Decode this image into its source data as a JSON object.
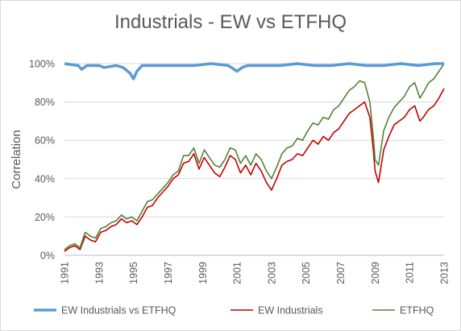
{
  "chart_data": {
    "type": "line",
    "title": "Industrials - EW vs ETFHQ",
    "xlabel": "",
    "ylabel": "Correlation",
    "xlim": [
      1991,
      2013
    ],
    "ylim": [
      0,
      100
    ],
    "x_ticks": [
      "1991",
      "1993",
      "1995",
      "1997",
      "1999",
      "2001",
      "2003",
      "2005",
      "2007",
      "2009",
      "2011",
      "2013"
    ],
    "y_ticks": [
      "0%",
      "20%",
      "40%",
      "60%",
      "80%",
      "100%"
    ],
    "grid": "horizontal",
    "legend_position": "bottom",
    "series": [
      {
        "name": "EW Industrials vs ETFHQ",
        "color": "#5b9bd5",
        "x": [
          1991.0,
          1991.8,
          1992.0,
          1992.3,
          1993.0,
          1993.3,
          1994.0,
          1994.4,
          1994.8,
          1995.0,
          1995.2,
          1995.5,
          1996.5,
          1997.5,
          1998.5,
          1999.5,
          2000.5,
          2001.0,
          2001.3,
          2001.6,
          2002.5,
          2003.5,
          2004.5,
          2005.5,
          2006.5,
          2007.5,
          2008.5,
          2009.5,
          2010.5,
          2011.5,
          2012.5,
          2013.0
        ],
        "y": [
          100,
          99,
          97,
          99,
          99,
          98,
          99,
          98,
          95,
          92,
          96,
          99,
          99,
          99,
          99,
          100,
          99,
          96,
          98,
          99,
          99,
          99,
          100,
          99,
          99,
          100,
          99,
          99,
          100,
          99,
          100,
          100
        ]
      },
      {
        "name": "EW Industrials",
        "color": "#c00000",
        "x": [
          1991.0,
          1991.3,
          1991.6,
          1991.9,
          1992.2,
          1992.5,
          1992.8,
          1993.1,
          1993.4,
          1993.7,
          1994.0,
          1994.3,
          1994.6,
          1994.9,
          1995.2,
          1995.5,
          1995.8,
          1996.1,
          1996.4,
          1996.7,
          1997.0,
          1997.3,
          1997.6,
          1997.9,
          1998.2,
          1998.5,
          1998.8,
          1999.1,
          1999.4,
          1999.7,
          2000.0,
          2000.3,
          2000.6,
          2000.9,
          2001.2,
          2001.5,
          2001.8,
          2002.1,
          2002.4,
          2002.7,
          2003.0,
          2003.3,
          2003.6,
          2003.9,
          2004.2,
          2004.5,
          2004.8,
          2005.1,
          2005.4,
          2005.7,
          2006.0,
          2006.3,
          2006.6,
          2006.9,
          2007.2,
          2007.5,
          2007.8,
          2008.1,
          2008.4,
          2008.7,
          2008.9,
          2009.0,
          2009.2,
          2009.5,
          2009.8,
          2010.1,
          2010.4,
          2010.7,
          2011.0,
          2011.3,
          2011.6,
          2011.8,
          2012.1,
          2012.4,
          2012.7,
          2013.0
        ],
        "y": [
          2,
          4,
          5,
          3,
          10,
          8,
          7,
          12,
          13,
          15,
          16,
          19,
          17,
          18,
          16,
          20,
          25,
          26,
          30,
          33,
          36,
          40,
          42,
          48,
          49,
          53,
          45,
          51,
          47,
          43,
          41,
          46,
          52,
          50,
          43,
          47,
          42,
          48,
          44,
          38,
          34,
          40,
          47,
          49,
          50,
          53,
          52,
          56,
          60,
          58,
          62,
          60,
          64,
          66,
          70,
          74,
          76,
          78,
          80,
          72,
          55,
          44,
          38,
          55,
          62,
          68,
          70,
          72,
          76,
          78,
          70,
          72,
          76,
          78,
          82,
          87
        ]
      },
      {
        "name": "ETFHQ",
        "color": "#548235",
        "x": [
          1991.0,
          1991.3,
          1991.6,
          1991.9,
          1992.2,
          1992.5,
          1992.8,
          1993.1,
          1993.4,
          1993.7,
          1994.0,
          1994.3,
          1994.6,
          1994.9,
          1995.2,
          1995.5,
          1995.8,
          1996.1,
          1996.4,
          1996.7,
          1997.0,
          1997.3,
          1997.6,
          1997.9,
          1998.2,
          1998.5,
          1998.8,
          1999.1,
          1999.4,
          1999.7,
          2000.0,
          2000.3,
          2000.6,
          2000.9,
          2001.2,
          2001.5,
          2001.8,
          2002.1,
          2002.4,
          2002.7,
          2003.0,
          2003.3,
          2003.6,
          2003.9,
          2004.2,
          2004.5,
          2004.8,
          2005.1,
          2005.4,
          2005.7,
          2006.0,
          2006.3,
          2006.6,
          2006.9,
          2007.2,
          2007.5,
          2007.8,
          2008.1,
          2008.4,
          2008.7,
          2008.9,
          2009.0,
          2009.2,
          2009.5,
          2009.8,
          2010.1,
          2010.4,
          2010.7,
          2011.0,
          2011.3,
          2011.6,
          2011.8,
          2012.1,
          2012.4,
          2012.7,
          2013.0
        ],
        "y": [
          3,
          5,
          6,
          4,
          12,
          10,
          9,
          14,
          15,
          17,
          18,
          21,
          19,
          20,
          18,
          23,
          28,
          29,
          32,
          35,
          38,
          42,
          44,
          52,
          52,
          56,
          48,
          55,
          51,
          47,
          46,
          50,
          56,
          55,
          48,
          52,
          47,
          53,
          50,
          44,
          40,
          46,
          53,
          56,
          57,
          61,
          60,
          65,
          69,
          68,
          72,
          71,
          76,
          78,
          82,
          86,
          88,
          91,
          90,
          80,
          62,
          50,
          47,
          65,
          72,
          77,
          80,
          83,
          88,
          90,
          82,
          85,
          90,
          92,
          96,
          100
        ]
      }
    ]
  }
}
